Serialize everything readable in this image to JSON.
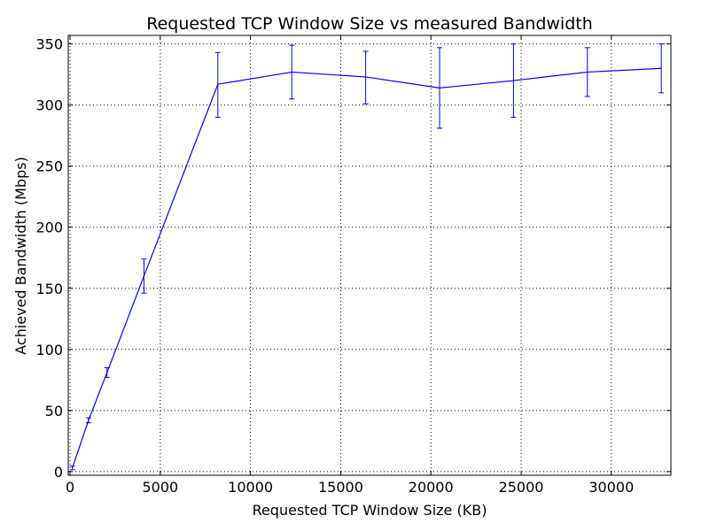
{
  "chart_data": {
    "type": "line",
    "title": "Requested TCP Window Size vs measured Bandwidth",
    "xlabel": "Requested TCP Window Size (KB)",
    "ylabel": "Achieved Bandwidth (Mbps)",
    "xlim": [
      -100,
      33300
    ],
    "ylim": [
      -3,
      357
    ],
    "xticks": [
      0,
      5000,
      10000,
      15000,
      20000,
      25000,
      30000
    ],
    "yticks": [
      0,
      50,
      100,
      150,
      200,
      250,
      300,
      350
    ],
    "grid": true,
    "line_color": "#0000ff",
    "grid_color": "#000000",
    "series": [
      {
        "x": [
          128,
          1024,
          2048,
          4096,
          8192,
          12288,
          16384,
          20480,
          24576,
          28672,
          32768
        ],
        "y": [
          3,
          42,
          81,
          160,
          317,
          327,
          323,
          314,
          320,
          327,
          330
        ],
        "yerr_low": [
          1.5,
          2,
          4,
          14,
          27,
          22,
          22,
          33,
          30,
          20,
          20
        ],
        "yerr_high": [
          1.5,
          2,
          4,
          14,
          26,
          22,
          21,
          33,
          30,
          20,
          20
        ]
      }
    ]
  }
}
